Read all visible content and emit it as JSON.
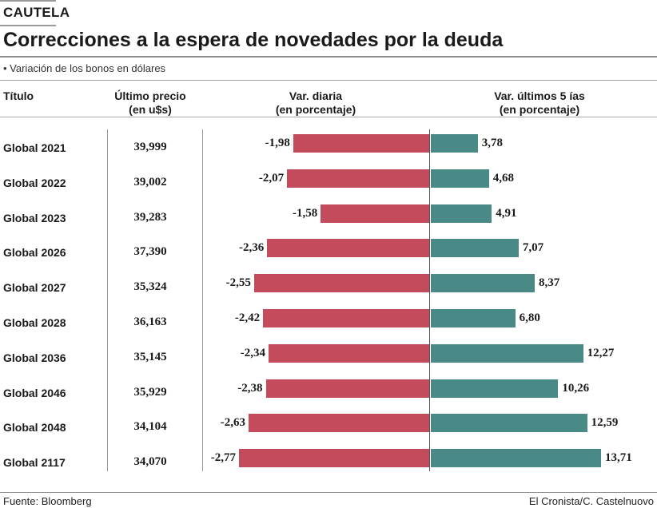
{
  "header": {
    "kicker": "CAUTELA",
    "title": "Correcciones a la espera de novedades por la deuda",
    "subtitle": "• Variación de los bonos en dólares"
  },
  "columns": {
    "titulo": "Título",
    "precio_l1": "Último precio",
    "precio_l2": "(en u$s)",
    "diaria_l1": "Var. diaria",
    "diaria_l2": "(en porcentaje)",
    "cinco_l1": "Var. últimos 5 ías",
    "cinco_l2": "(en porcentaje)"
  },
  "colors": {
    "negative": "#c44b5c",
    "positive": "#4a8a86"
  },
  "footer": {
    "source": "Fuente: Bloomberg",
    "credit": "El Cronista/C. Castelnuovo"
  },
  "chart_data": {
    "type": "bar",
    "title": "Correcciones a la espera de novedades por la deuda",
    "subtitle": "Variación de los bonos en dólares",
    "categories": [
      "Global 2021",
      "Global 2022",
      "Global 2023",
      "Global 2026",
      "Global 2027",
      "Global 2028",
      "Global 2036",
      "Global 2046",
      "Global 2048",
      "Global 2117"
    ],
    "prices": [
      "39,999",
      "39,002",
      "39,283",
      "37,390",
      "35,324",
      "36,163",
      "35,145",
      "35,929",
      "34,104",
      "34,070"
    ],
    "series": [
      {
        "name": "Var. diaria (en porcentaje)",
        "values": [
          -1.98,
          -2.07,
          -1.58,
          -2.36,
          -2.55,
          -2.42,
          -2.34,
          -2.38,
          -2.63,
          -2.77
        ],
        "labels": [
          "-1,98",
          "-2,07",
          "-1,58",
          "-2,36",
          "-2,55",
          "-2,42",
          "-2,34",
          "-2,38",
          "-2,63",
          "-2,77"
        ]
      },
      {
        "name": "Var. últimos 5 ías (en porcentaje)",
        "values": [
          3.78,
          4.68,
          4.91,
          7.07,
          8.37,
          6.8,
          12.27,
          10.26,
          12.59,
          13.71
        ],
        "labels": [
          "3,78",
          "4,68",
          "4,91",
          "7,07",
          "8,37",
          "6,80",
          "12,27",
          "10,26",
          "12,59",
          "13,71"
        ]
      }
    ],
    "xlabel": "",
    "ylabel": ""
  }
}
